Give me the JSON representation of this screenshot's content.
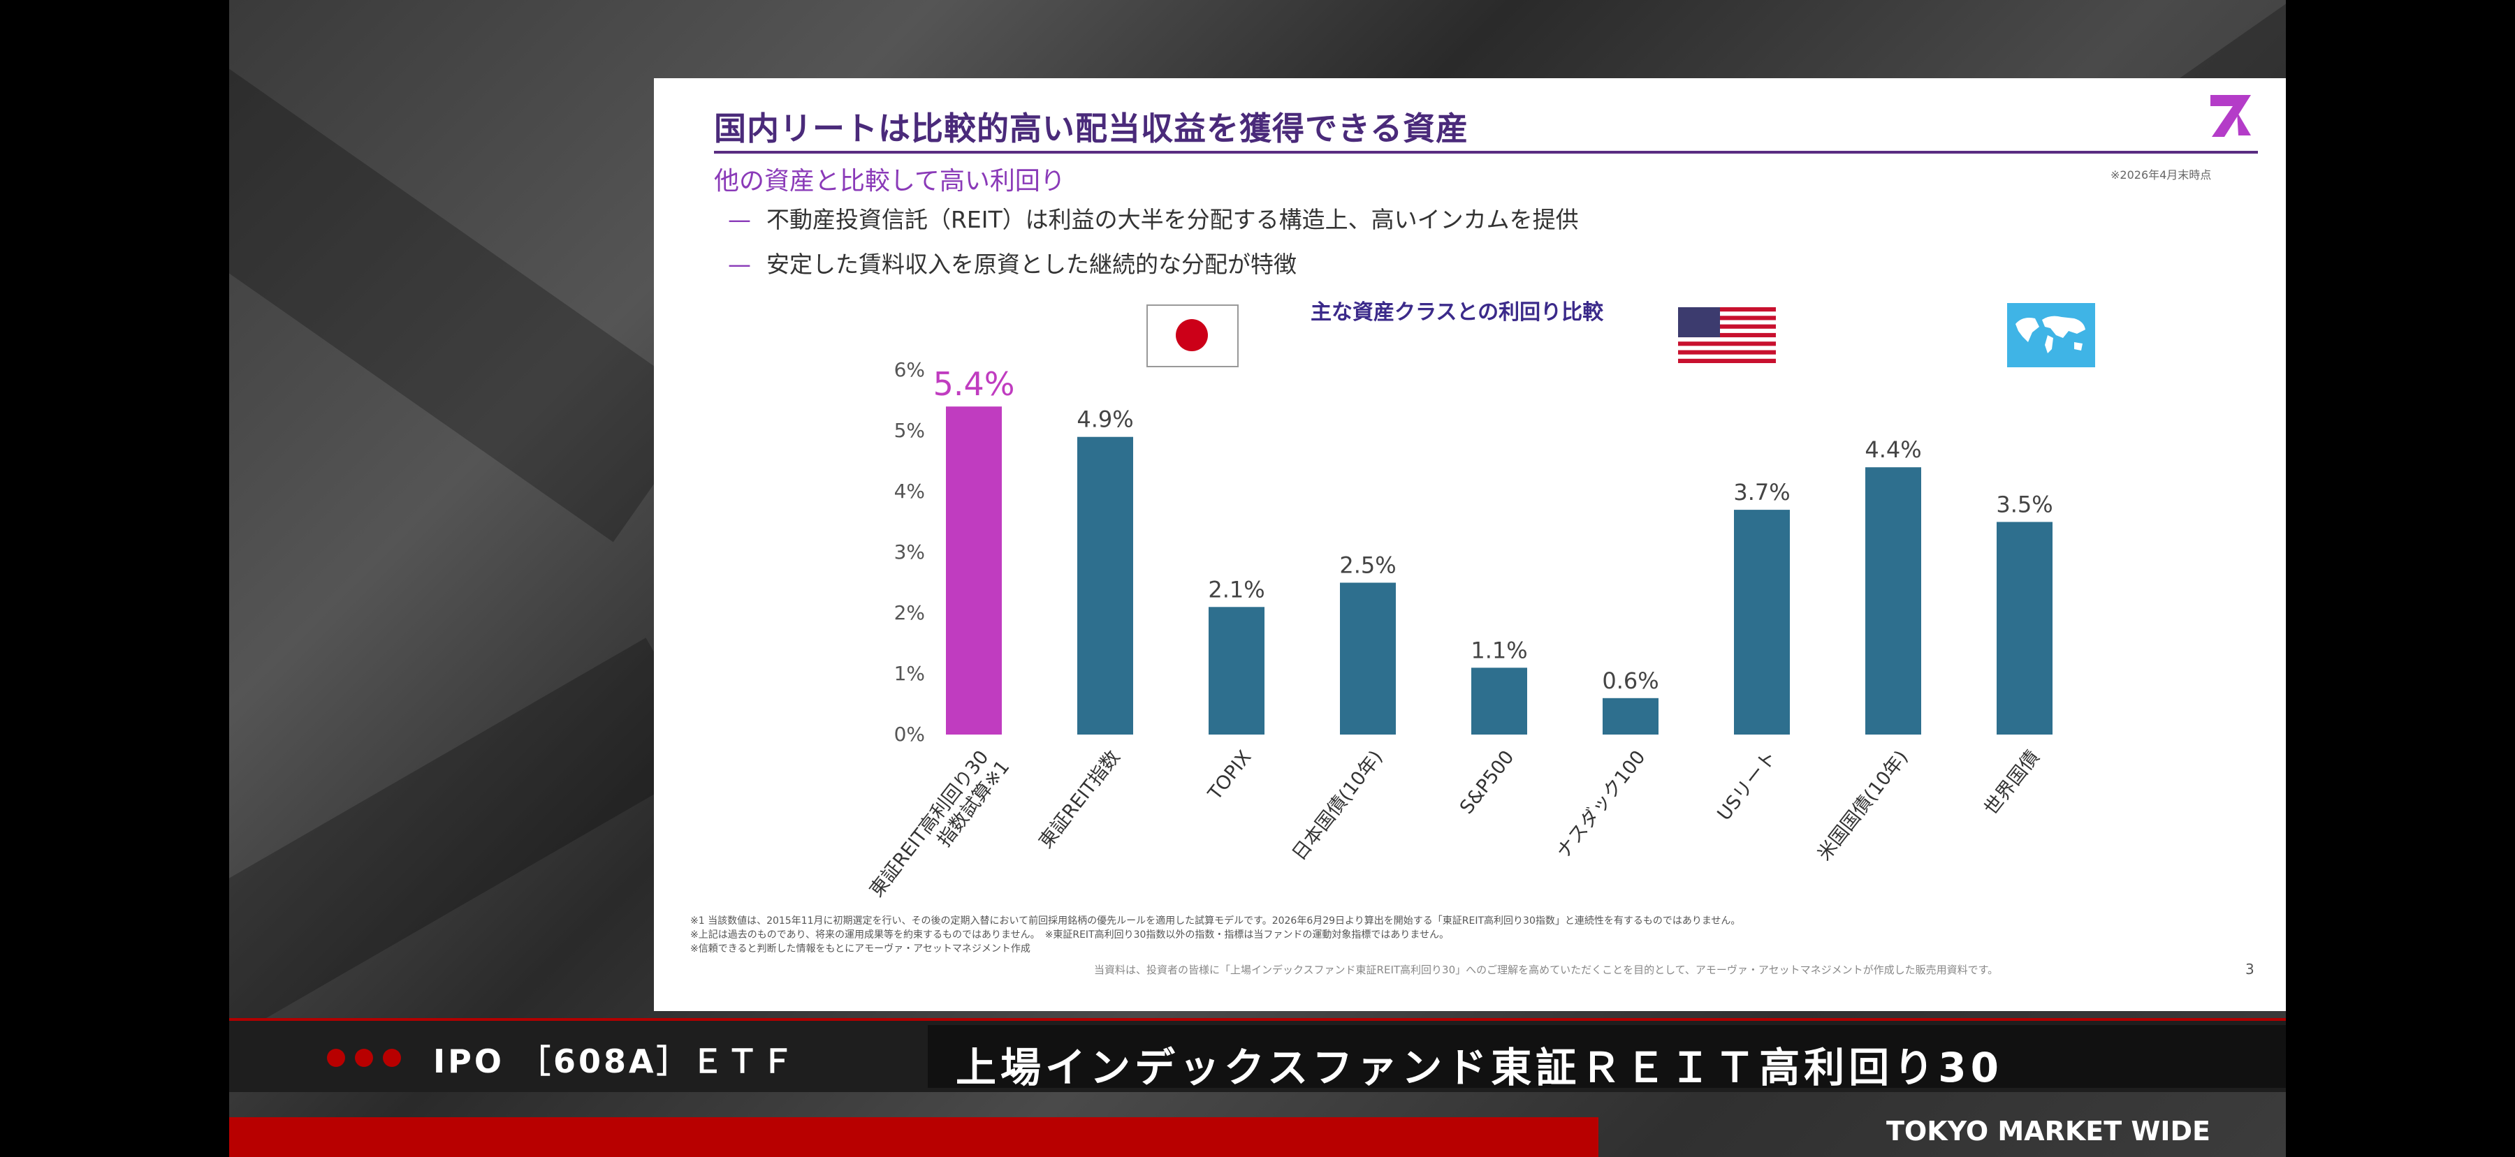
{
  "slide": {
    "title": "国内リートは比較的高い配当収益を獲得できる資産",
    "subtitle": "他の資産と比較して高い利回り",
    "date_note": "※2026年4月末時点",
    "bullets": [
      "不動産投資信託（REIT）は利益の大半を分配する構造上、高いインカムを提供",
      "安定した賃料収入を原資とした継続的な分配が特徴"
    ],
    "bullet_dash": "—",
    "footnotes": [
      "※1 当該数値は、2015年11月に初期選定を行い、その後の定期入替において前回採用銘柄の優先ルールを適用した試算モデルです。2026年6月29日より算出を開始する「東証REIT高利回り30指数」と連続性を有するものではありません。",
      "※上記は過去のものであり、将来の運用成果等を約束するものではありません。　※東証REIT高利回り30指数以外の指数・指標は当ファンドの運動対象指標ではありません。",
      "※信頼できると判断した情報をもとにアモーヴァ・アセットマネジメント作成"
    ],
    "footer": "当資料は、投資者の皆様に「上場インデックスファンド東証REIT高利回り30」へのご理解を高めていただくことを目的として、アモーヴァ・アセットマネジメントが作成した販売用資料です。",
    "page_number": "3",
    "logo_icon": "amova-logo-icon",
    "flag_icons": [
      "japan-flag-icon",
      "usa-flag-icon",
      "world-map-icon"
    ]
  },
  "chart_data": {
    "type": "bar",
    "title": "主な資産クラスとの利回り比較",
    "categories": [
      "東証REIT高利回り30\n指数試算※1",
      "東証REIT指数",
      "TOPIX",
      "日本国債(10年)",
      "S&P500",
      "ナスダック100",
      "USリート",
      "米国国債(10年)",
      "世界国債"
    ],
    "values": [
      5.4,
      4.9,
      2.1,
      2.5,
      1.1,
      0.6,
      3.7,
      4.4,
      3.5
    ],
    "value_labels": [
      "5.4%",
      "4.9%",
      "2.1%",
      "2.5%",
      "1.1%",
      "0.6%",
      "3.7%",
      "4.4%",
      "3.5%"
    ],
    "y_ticks": [
      "0%",
      "1%",
      "2%",
      "3%",
      "4%",
      "5%",
      "6%"
    ],
    "ylim": [
      0,
      6
    ],
    "colors": {
      "highlight": "#c03cc0",
      "default": "#2e6f8e",
      "highlight_label": "#c03cc0",
      "label": "#444444"
    },
    "grid": false,
    "legend": "none"
  },
  "ticker": {
    "left_text": "IPO ［608A］ＥＴＦ",
    "main_text": "上場インデックスファンド東証ＲＥＩＴ高利回り30"
  },
  "brand": "TOKYO MARKET WIDE",
  "colors": {
    "accent_red": "#b80000",
    "title_purple": "#5a2d82"
  }
}
